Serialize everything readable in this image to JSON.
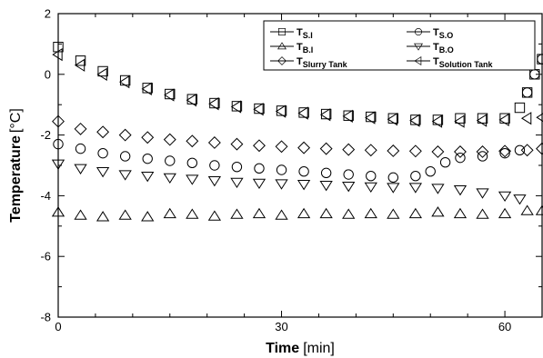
{
  "chart_data": {
    "type": "scatter",
    "xlabel": "Time",
    "xlabel_unit": "[min]",
    "ylabel": "Temperature",
    "ylabel_unit": "[°C]",
    "xlim": [
      0,
      65
    ],
    "ylim": [
      -8,
      2
    ],
    "x_ticks": [
      0,
      30,
      60
    ],
    "y_ticks": [
      2,
      0,
      -2,
      -4,
      -6,
      -8
    ],
    "x_tick_labels": [
      "0",
      "30",
      "60"
    ],
    "y_tick_labels": [
      "2",
      "0",
      "-2",
      "-4",
      "-6",
      "-8"
    ],
    "grid": false,
    "legend_position": "top-right",
    "series": [
      {
        "name": "T",
        "subscript": "S.I",
        "marker": "square",
        "x": [
          0,
          3,
          6,
          9,
          12,
          15,
          18,
          21,
          24,
          27,
          30,
          33,
          36,
          39,
          42,
          45,
          48,
          51,
          54,
          57,
          60,
          62,
          63,
          64,
          65
        ],
        "y": [
          0.9,
          0.45,
          0.1,
          -0.2,
          -0.45,
          -0.65,
          -0.82,
          -0.95,
          -1.05,
          -1.13,
          -1.2,
          -1.26,
          -1.31,
          -1.36,
          -1.4,
          -1.45,
          -1.5,
          -1.5,
          -1.45,
          -1.45,
          -1.45,
          -1.1,
          -0.6,
          0.0,
          0.5
        ]
      },
      {
        "name": "T",
        "subscript": "S.O",
        "marker": "circle",
        "x": [
          0,
          3,
          6,
          9,
          12,
          15,
          18,
          21,
          24,
          27,
          30,
          33,
          36,
          39,
          42,
          45,
          48,
          50,
          52,
          54,
          57,
          60,
          62,
          63,
          64,
          65
        ],
        "y": [
          -2.3,
          -2.45,
          -2.6,
          -2.7,
          -2.78,
          -2.85,
          -2.92,
          -3.0,
          -3.05,
          -3.1,
          -3.15,
          -3.2,
          -3.25,
          -3.3,
          -3.35,
          -3.4,
          -3.35,
          -3.2,
          -2.9,
          -2.75,
          -2.7,
          -2.6,
          -2.5,
          -0.6,
          0.0,
          0.5
        ]
      },
      {
        "name": "T",
        "subscript": "B.I",
        "marker": "triangle-up",
        "x": [
          0,
          3,
          6,
          9,
          12,
          15,
          18,
          21,
          24,
          27,
          30,
          33,
          36,
          39,
          42,
          45,
          48,
          51,
          54,
          57,
          60,
          63,
          65
        ],
        "y": [
          -4.55,
          -4.65,
          -4.7,
          -4.65,
          -4.7,
          -4.6,
          -4.62,
          -4.68,
          -4.62,
          -4.6,
          -4.65,
          -4.6,
          -4.6,
          -4.62,
          -4.6,
          -4.62,
          -4.6,
          -4.55,
          -4.6,
          -4.62,
          -4.6,
          -4.5,
          -4.5
        ]
      },
      {
        "name": "T",
        "subscript": "B.O",
        "marker": "triangle-down",
        "x": [
          0,
          3,
          6,
          9,
          12,
          15,
          18,
          21,
          24,
          27,
          30,
          33,
          36,
          39,
          42,
          45,
          48,
          51,
          54,
          57,
          60,
          62
        ],
        "y": [
          -2.95,
          -3.1,
          -3.2,
          -3.3,
          -3.35,
          -3.4,
          -3.45,
          -3.5,
          -3.55,
          -3.58,
          -3.6,
          -3.62,
          -3.65,
          -3.68,
          -3.7,
          -3.72,
          -3.72,
          -3.75,
          -3.8,
          -3.9,
          -4.0,
          -4.1
        ]
      },
      {
        "name": "T",
        "subscript": "Slurry Tank",
        "marker": "diamond",
        "x": [
          0,
          3,
          6,
          9,
          12,
          15,
          18,
          21,
          24,
          27,
          30,
          33,
          36,
          39,
          42,
          45,
          48,
          51,
          54,
          57,
          60,
          63,
          65
        ],
        "y": [
          -1.55,
          -1.8,
          -1.9,
          -2.0,
          -2.08,
          -2.15,
          -2.2,
          -2.25,
          -2.3,
          -2.35,
          -2.38,
          -2.42,
          -2.45,
          -2.48,
          -2.5,
          -2.52,
          -2.53,
          -2.55,
          -2.55,
          -2.55,
          -2.53,
          -2.5,
          -2.45
        ]
      },
      {
        "name": "T",
        "subscript": "Solution Tank",
        "marker": "triangle-left",
        "x": [
          0,
          3,
          6,
          9,
          12,
          15,
          18,
          21,
          24,
          27,
          30,
          33,
          36,
          39,
          42,
          45,
          48,
          51,
          54,
          57,
          60,
          63,
          65
        ],
        "y": [
          0.65,
          0.3,
          0.0,
          -0.25,
          -0.48,
          -0.68,
          -0.85,
          -0.97,
          -1.07,
          -1.15,
          -1.22,
          -1.28,
          -1.33,
          -1.38,
          -1.43,
          -1.48,
          -1.52,
          -1.55,
          -1.55,
          -1.52,
          -1.5,
          -1.45,
          -1.42
        ]
      }
    ]
  }
}
